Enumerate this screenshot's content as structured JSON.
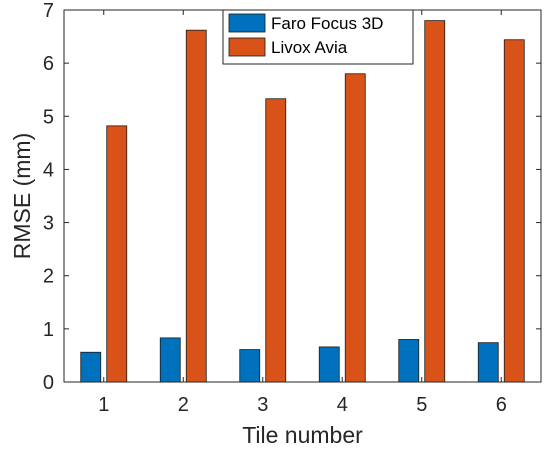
{
  "chart_data": {
    "type": "bar",
    "title": "",
    "xlabel": "Tile number",
    "ylabel": "RMSE (mm)",
    "categories": [
      "1",
      "2",
      "3",
      "4",
      "5",
      "6"
    ],
    "series": [
      {
        "name": "Faro Focus 3D",
        "color": "#0072BD",
        "values": [
          0.56,
          0.83,
          0.61,
          0.66,
          0.8,
          0.74
        ]
      },
      {
        "name": "Livox Avia",
        "color": "#D95319",
        "values": [
          4.82,
          6.62,
          5.33,
          5.8,
          6.8,
          6.44
        ]
      }
    ],
    "ylim": [
      0,
      7
    ],
    "yticks": [
      "0",
      "1",
      "2",
      "3",
      "4",
      "5",
      "6",
      "7"
    ],
    "grid": false,
    "legend_position": "top-center"
  }
}
